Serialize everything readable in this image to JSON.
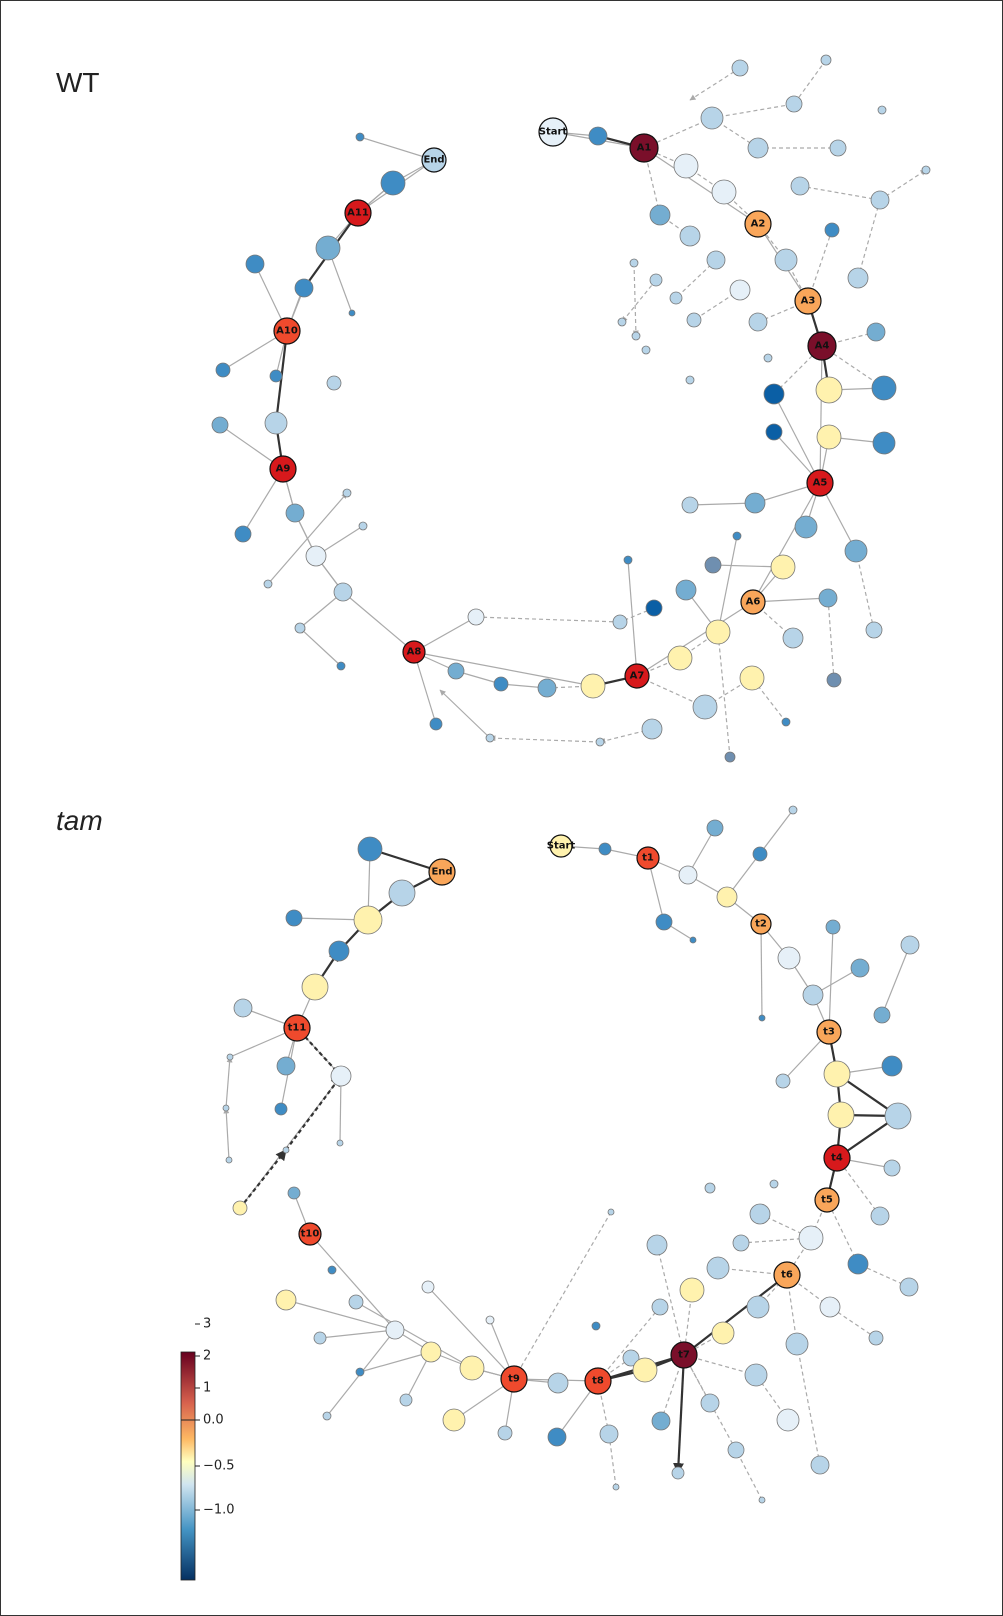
{
  "panels": {
    "wt": {
      "label": "WT"
    },
    "tam": {
      "label": "tam"
    }
  },
  "colorbar": {
    "ticks": [
      "3",
      "2",
      "1",
      "0.0",
      "−0.5",
      "−1.0"
    ],
    "stops": [
      "#67001f",
      "#d6604d",
      "#fdb863",
      "#ffffbf",
      "#d1e5f0",
      "#4393c3",
      "#053061"
    ]
  },
  "colors": {
    "dark_red": "#7a0f2a",
    "red": "#d7191c",
    "orange_red": "#ef4a2d",
    "orange": "#f9a65a",
    "light_yellow": "#fff2ae",
    "pale": "#e6f0f8",
    "light_blue": "#b7d4e8",
    "mid_blue": "#74add1",
    "blue": "#3f8cc4",
    "dark_blue": "#0b5fa5",
    "grey_blue": "#6f8fb0"
  },
  "wt_key_nodes": [
    {
      "label": "Start"
    },
    {
      "label": "A1"
    },
    {
      "label": "A2"
    },
    {
      "label": "A3"
    },
    {
      "label": "A4"
    },
    {
      "label": "A5"
    },
    {
      "label": "A6"
    },
    {
      "label": "A7"
    },
    {
      "label": "A8"
    },
    {
      "label": "A9"
    },
    {
      "label": "A10"
    },
    {
      "label": "A11"
    },
    {
      "label": "End"
    }
  ],
  "tam_key_nodes": [
    {
      "label": "Start"
    },
    {
      "label": "t1"
    },
    {
      "label": "t2"
    },
    {
      "label": "t3"
    },
    {
      "label": "t4"
    },
    {
      "label": "t5"
    },
    {
      "label": "t6"
    },
    {
      "label": "t7"
    },
    {
      "label": "t8"
    },
    {
      "label": "t9"
    },
    {
      "label": "t10"
    },
    {
      "label": "t11"
    },
    {
      "label": "End"
    }
  ]
}
